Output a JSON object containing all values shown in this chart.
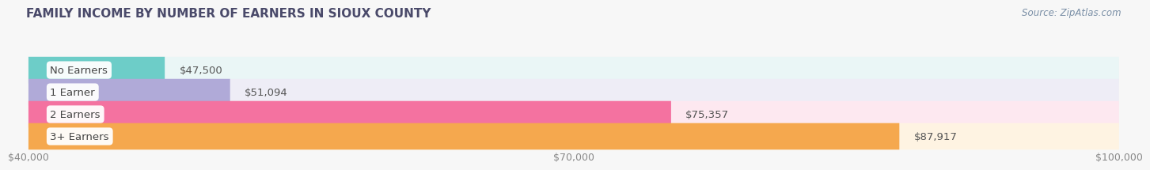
{
  "title": "FAMILY INCOME BY NUMBER OF EARNERS IN SIOUX COUNTY",
  "source": "Source: ZipAtlas.com",
  "categories": [
    "No Earners",
    "1 Earner",
    "2 Earners",
    "3+ Earners"
  ],
  "values": [
    47500,
    51094,
    75357,
    87917
  ],
  "labels": [
    "$47,500",
    "$51,094",
    "$75,357",
    "$87,917"
  ],
  "bar_colors": [
    "#6dcdc8",
    "#b0aad8",
    "#f472a0",
    "#f5a84e"
  ],
  "bar_bg_colors": [
    "#eaf6f6",
    "#eeedf6",
    "#fde8f0",
    "#fef3e2"
  ],
  "xmin": 40000,
  "xmax": 100000,
  "xticks": [
    40000,
    70000,
    100000
  ],
  "xtick_labels": [
    "$40,000",
    "$70,000",
    "$100,000"
  ],
  "title_fontsize": 11,
  "label_fontsize": 9.5,
  "source_fontsize": 8.5,
  "tick_fontsize": 9,
  "bg_color": "#f7f7f7",
  "plot_bg_color": "#f7f7f7"
}
